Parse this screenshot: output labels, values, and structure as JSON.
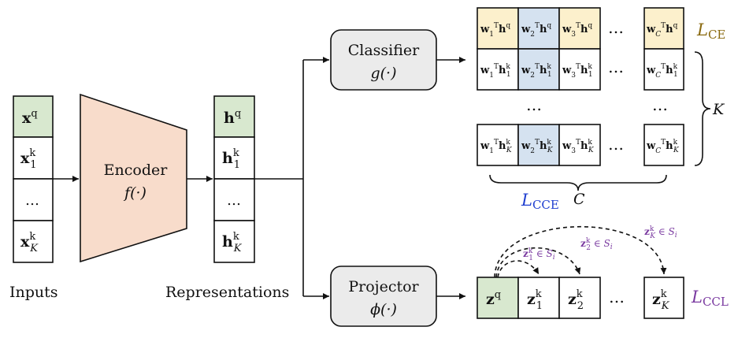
{
  "colors": {
    "green": "#d8e8cf",
    "orange": "#f8dccb",
    "yellow": "#fcf0cc",
    "blue": "#d5e2f0",
    "gray": "#ebebeb",
    "gold": "#8a6a10",
    "blueText": "#1f3fd0",
    "purple": "#7a3aa0"
  },
  "inputs": {
    "cells": [
      "xq",
      "x1k",
      "…",
      "xKk"
    ],
    "caption": "Inputs"
  },
  "encoder": {
    "title": "Encoder",
    "fn": "f(·)"
  },
  "representations": {
    "cells": [
      "hq",
      "h1k",
      "…",
      "hKk"
    ],
    "caption": "Representations"
  },
  "classifier": {
    "title": "Classifier",
    "fn": "g(·)"
  },
  "projector": {
    "title": "Projector",
    "fn": "ϕ(·)"
  },
  "logits": {
    "row_query": [
      "w1ᵀhq",
      "w2ᵀhq",
      "w3ᵀhq",
      "wCᵀhq"
    ],
    "row_first": [
      "w1ᵀh1k",
      "w2ᵀh1k",
      "w3ᵀh1k",
      "wCᵀh1k"
    ],
    "row_last": [
      "w1ᵀhKk",
      "w2ᵀhKk",
      "w3ᵀhKk",
      "wCᵀhKk"
    ],
    "ellipsis": "…",
    "mid_ellipsis": "…"
  },
  "labels": {
    "L_CE": "L",
    "L_CE_sub": "CE",
    "L_CCE": "L",
    "L_CCE_sub": "CCE",
    "C": "C",
    "K": "K",
    "L_CCL": "L",
    "L_CCL_sub": "CCL"
  },
  "projections": {
    "cells": [
      "zq",
      "z1k",
      "z2k",
      "…",
      "zKk"
    ],
    "arc_labels": [
      "z1k ∈ Si",
      "z2k ∈ Si",
      "zKk ∈ Si"
    ]
  }
}
